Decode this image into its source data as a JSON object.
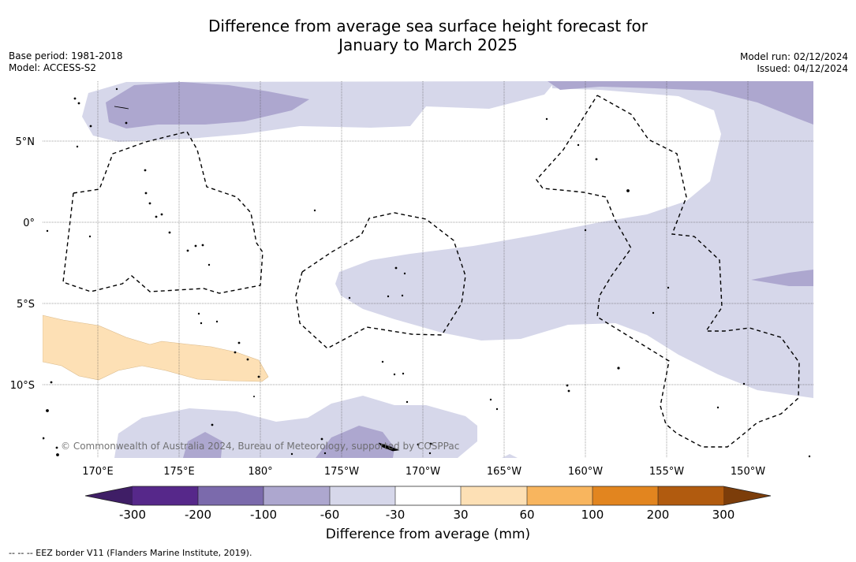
{
  "title": {
    "line1": "Difference from average sea surface height forecast for",
    "line2": "January to March 2025"
  },
  "meta_left": {
    "base_period": "Base period: 1981-2018",
    "model": "Model: ACCESS-S2"
  },
  "meta_right": {
    "model_run": "Model run: 02/12/2024",
    "issued": "Issued: 04/12/2024"
  },
  "map": {
    "lat_labels": [
      "5°N",
      "0°",
      "5°S",
      "10°S"
    ],
    "lon_labels": [
      "170°E",
      "175°E",
      "180°",
      "175°W",
      "170°W",
      "165°W",
      "160°W",
      "155°W",
      "150°W"
    ],
    "copyright": "© Commonwealth of Australia 2024, Bureau of Meteorology, supported by COSPPac"
  },
  "colorbar": {
    "label": "Difference from average (mm)",
    "ticks": [
      "-300",
      "-200",
      "-100",
      "-60",
      "-30",
      "30",
      "60",
      "100",
      "200",
      "300"
    ],
    "colors": [
      "#3f1e66",
      "#56288a",
      "#7b6aac",
      "#ada7cf",
      "#d6d7ea",
      "#ffffff",
      "#fde0b5",
      "#f8b55e",
      "#e2851f",
      "#b15b0f",
      "#7c3d0a"
    ]
  },
  "footnote": "--  --  -- EEZ border V11 (Flanders Marine Institute, 2019)."
}
